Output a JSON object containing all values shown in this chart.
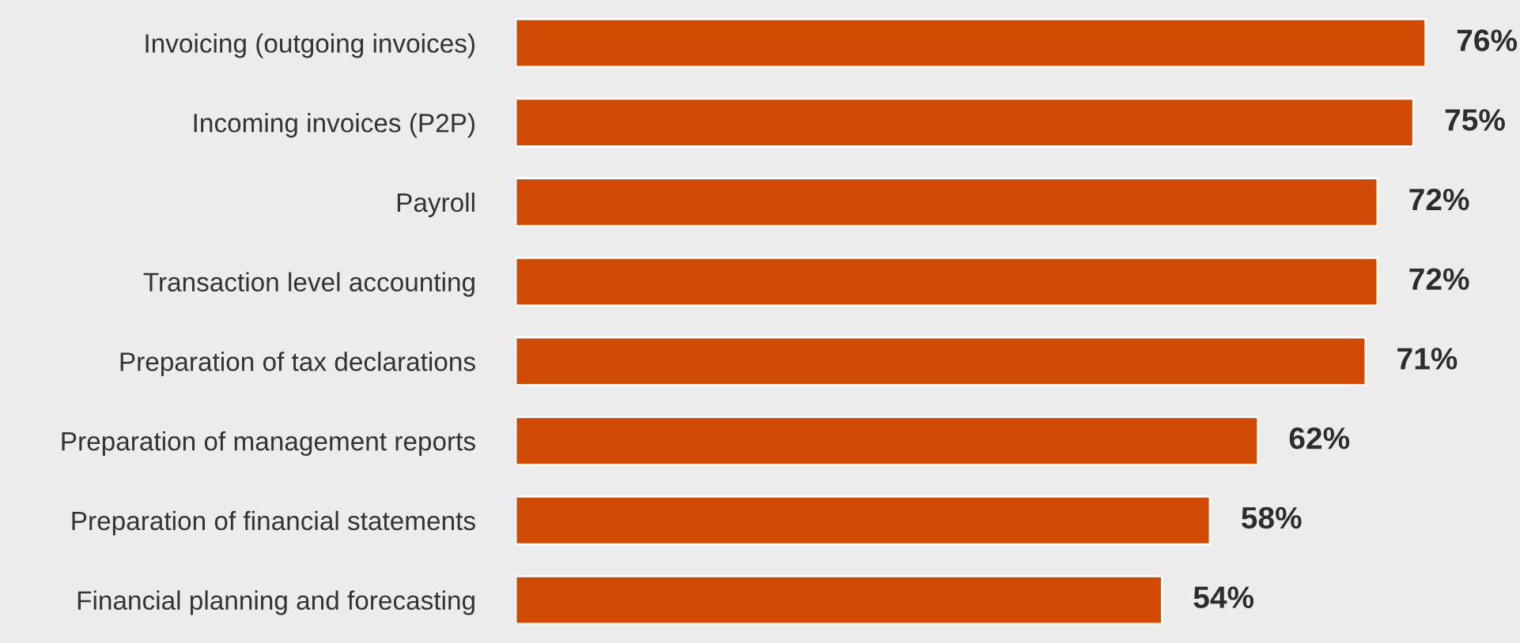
{
  "chart_data": {
    "type": "bar",
    "orientation": "horizontal",
    "categories": [
      "Invoicing (outgoing invoices)",
      "Incoming invoices (P2P)",
      "Payroll",
      "Transaction level accounting",
      "Preparation of tax declarations",
      "Preparation of management reports",
      "Preparation of financial statements",
      "Financial planning and forecasting"
    ],
    "values": [
      76,
      75,
      72,
      72,
      71,
      62,
      58,
      54
    ],
    "value_labels": [
      "76%",
      "75%",
      "72%",
      "72%",
      "71%",
      "62%",
      "58%",
      "54%"
    ],
    "color": "#d04a02",
    "grid": false,
    "legend": false
  }
}
